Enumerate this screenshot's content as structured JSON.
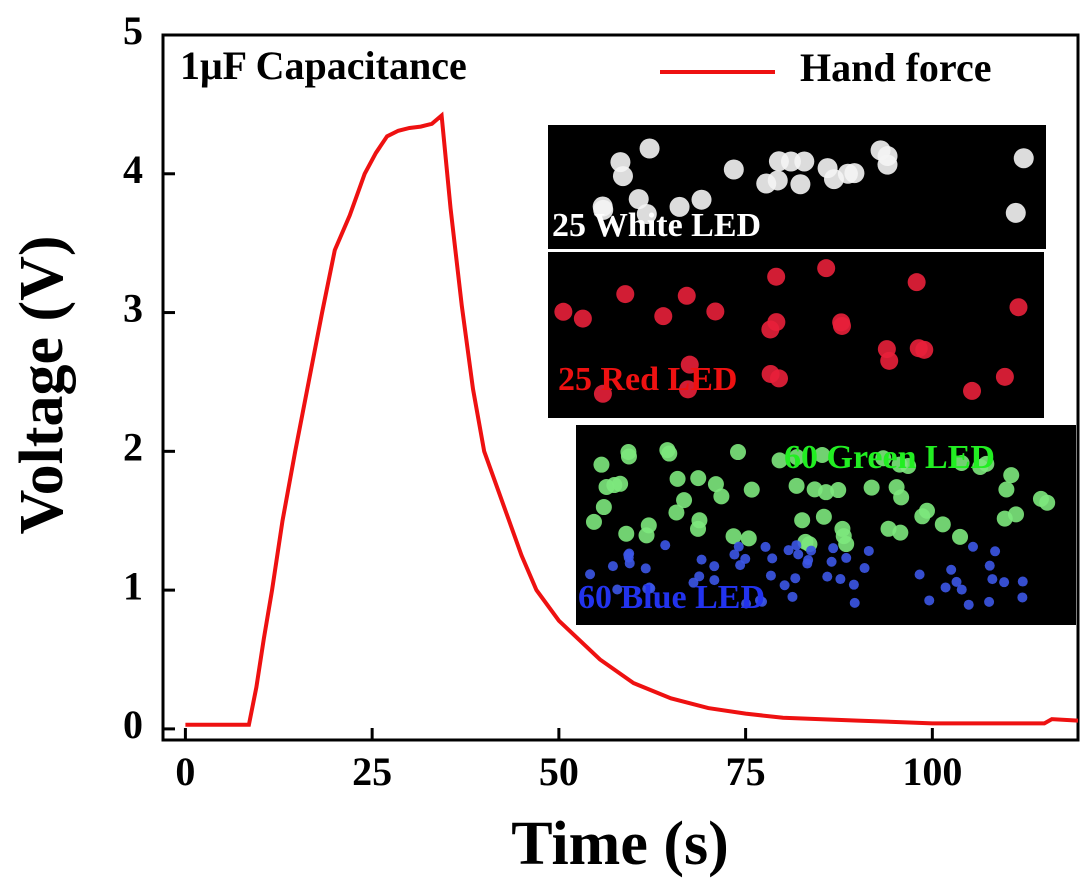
{
  "chart_data": {
    "type": "line",
    "xlabel": "Time (s)",
    "ylabel": "Voltage (V)",
    "x": [
      0,
      4,
      8.5,
      9.5,
      10.5,
      11.6,
      13,
      14.7,
      16.5,
      18.3,
      20,
      22,
      24,
      25.5,
      27,
      28.5,
      30,
      31.5,
      33,
      34.3,
      35.5,
      37,
      38.5,
      40,
      42,
      45,
      47,
      50,
      55.5,
      60,
      65,
      70,
      75,
      80,
      90,
      100,
      115,
      116,
      119.5
    ],
    "series": [
      {
        "name": "Hand force",
        "color": "#ee1111",
        "values": [
          0.03,
          0.03,
          0.03,
          0.3,
          0.65,
          1.0,
          1.5,
          2.0,
          2.5,
          3.0,
          3.45,
          3.7,
          4.0,
          4.15,
          4.27,
          4.31,
          4.33,
          4.34,
          4.36,
          4.42,
          3.75,
          3.05,
          2.45,
          2.0,
          1.7,
          1.25,
          1.0,
          0.78,
          0.5,
          0.33,
          0.22,
          0.15,
          0.11,
          0.08,
          0.06,
          0.04,
          0.04,
          0.07,
          0.06
        ]
      }
    ],
    "xlim": [
      -3,
      119.5
    ],
    "ylim": [
      -0.08,
      5
    ],
    "xticks": [
      0,
      25,
      50,
      75,
      100
    ],
    "yticks": [
      0,
      1,
      2,
      3,
      4,
      5
    ],
    "legend": "upper right",
    "annotations": [
      "1μF Capacitance",
      "25 White LED",
      "25 Red LED",
      "60 Green LED",
      "60 Blue LED"
    ]
  }
}
